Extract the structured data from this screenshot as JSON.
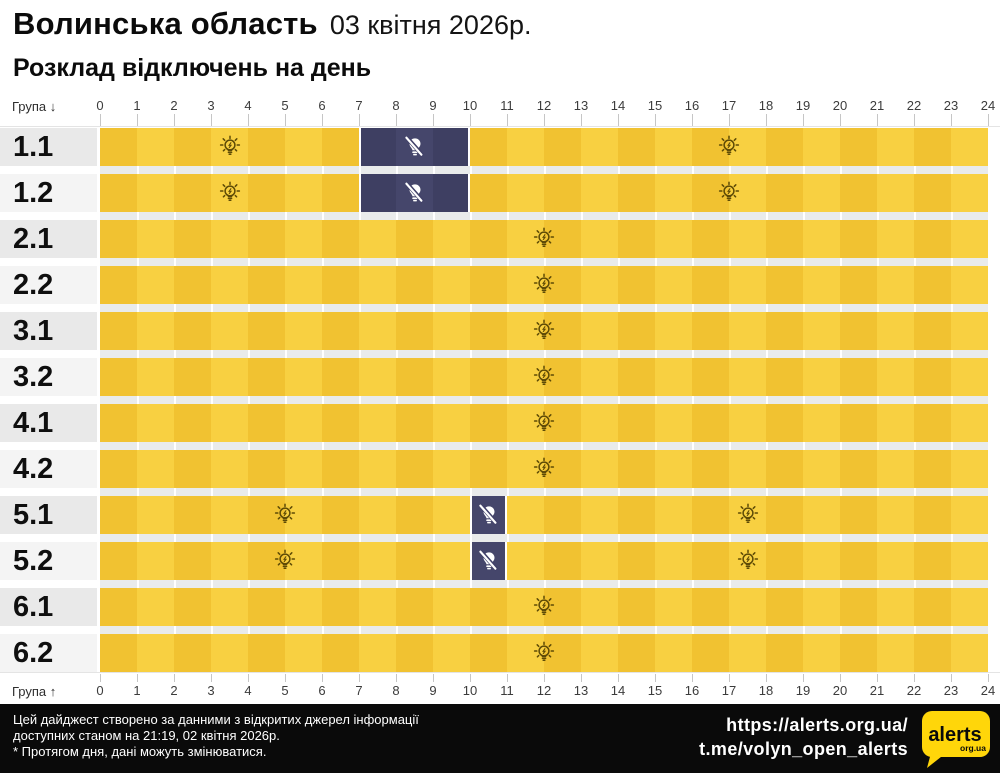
{
  "header": {
    "region": "Волинська область",
    "date": "03 квітня 2026р.",
    "subtitle": "Розклад відключень на день"
  },
  "axis": {
    "top_label": "Група ↓",
    "bottom_label": "Група ↑",
    "hours": [
      0,
      1,
      2,
      3,
      4,
      5,
      6,
      7,
      8,
      9,
      10,
      11,
      12,
      13,
      14,
      15,
      16,
      17,
      18,
      19,
      20,
      21,
      22,
      23,
      24
    ]
  },
  "icons": {
    "on": "lightbulb-on-icon",
    "off": "lightbulb-off-icon",
    "logo": "alerts-logo"
  },
  "colors": {
    "power_on_dark": "#F1C231",
    "power_on_light": "#F8D041",
    "power_off_dark": "#3E3F62",
    "power_off_light": "#45466B",
    "label_col_a": "#e9e9e9",
    "label_col_b": "#f4f4f4",
    "footer_bg": "#0a0a0a",
    "logo_yellow": "#FFD60A"
  },
  "chart_data": {
    "type": "heatmap",
    "title": "Розклад відключень на день",
    "x_range": [
      0,
      24
    ],
    "x_ticks": [
      0,
      1,
      2,
      3,
      4,
      5,
      6,
      7,
      8,
      9,
      10,
      11,
      12,
      13,
      14,
      15,
      16,
      17,
      18,
      19,
      20,
      21,
      22,
      23,
      24
    ],
    "grid": true,
    "legend": "none",
    "groups": [
      {
        "label": "1.1",
        "power_off_intervals": [
          [
            7,
            10
          ]
        ],
        "bulb_on_positions": [
          3.5,
          17
        ],
        "bulb_off_positions": [
          8.5
        ]
      },
      {
        "label": "1.2",
        "power_off_intervals": [
          [
            7,
            10
          ]
        ],
        "bulb_on_positions": [
          3.5,
          17
        ],
        "bulb_off_positions": [
          8.5
        ]
      },
      {
        "label": "2.1",
        "power_off_intervals": [],
        "bulb_on_positions": [
          12
        ],
        "bulb_off_positions": []
      },
      {
        "label": "2.2",
        "power_off_intervals": [],
        "bulb_on_positions": [
          12
        ],
        "bulb_off_positions": []
      },
      {
        "label": "3.1",
        "power_off_intervals": [],
        "bulb_on_positions": [
          12
        ],
        "bulb_off_positions": []
      },
      {
        "label": "3.2",
        "power_off_intervals": [],
        "bulb_on_positions": [
          12
        ],
        "bulb_off_positions": []
      },
      {
        "label": "4.1",
        "power_off_intervals": [],
        "bulb_on_positions": [
          12
        ],
        "bulb_off_positions": []
      },
      {
        "label": "4.2",
        "power_off_intervals": [],
        "bulb_on_positions": [
          12
        ],
        "bulb_off_positions": []
      },
      {
        "label": "5.1",
        "power_off_intervals": [
          [
            10,
            11
          ]
        ],
        "bulb_on_positions": [
          5,
          17.5
        ],
        "bulb_off_positions": [
          10.5
        ]
      },
      {
        "label": "5.2",
        "power_off_intervals": [
          [
            10,
            11
          ]
        ],
        "bulb_on_positions": [
          5,
          17.5
        ],
        "bulb_off_positions": [
          10.5
        ]
      },
      {
        "label": "6.1",
        "power_off_intervals": [],
        "bulb_on_positions": [
          12
        ],
        "bulb_off_positions": []
      },
      {
        "label": "6.2",
        "power_off_intervals": [],
        "bulb_on_positions": [
          12
        ],
        "bulb_off_positions": []
      }
    ]
  },
  "footer": {
    "line1": "Цей дайджест створено за данними з відкритих джерел інформації",
    "line2": "доступних станом на 21:19, 02 квітня 2026р.",
    "line3": "* Протягом дня, дані можуть змінюватися.",
    "url1": "https://alerts.org.ua/",
    "url2": "t.me/volyn_open_alerts",
    "logo_text": "alerts",
    "logo_sub": "org.ua"
  }
}
